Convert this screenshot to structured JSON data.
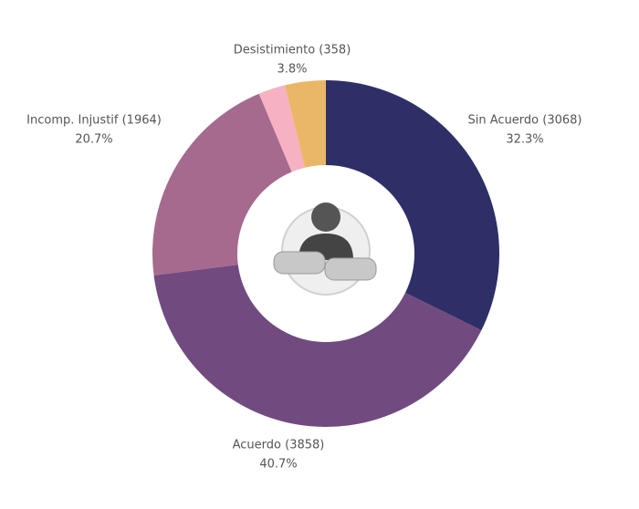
{
  "chart_data": {
    "type": "donut",
    "categories": [
      "Sin Acuerdo (3068)",
      "Acuerdo (3858)",
      "Incomp. Injustif (1964)",
      null,
      "Desistimiento (358)"
    ],
    "values": [
      32.3,
      40.7,
      20.7,
      2.5,
      3.8
    ],
    "value_labels": [
      "32.3%",
      "40.7%",
      "20.7%",
      null,
      "3.8%"
    ],
    "colors": [
      "#2e2f66",
      "#714a80",
      "#a56a8e",
      "#f6b2c2",
      "#e9b767"
    ]
  }
}
